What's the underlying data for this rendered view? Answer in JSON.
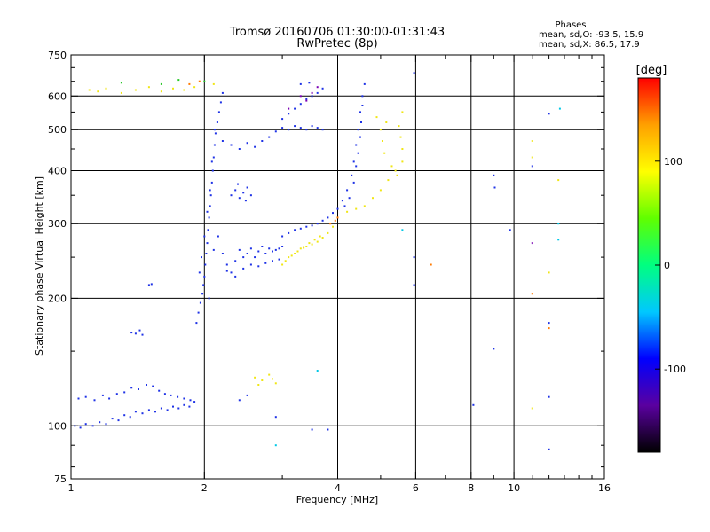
{
  "chart_data": {
    "type": "scatter",
    "title": "Tromsø 20160706 01:30:00-01:31:43",
    "subtitle": "RwPretec (8p)",
    "xlabel": "Frequency [MHz]",
    "ylabel": "Stationary phase Virtual Height [km]",
    "x_scale": "log",
    "y_scale": "log",
    "xlim": [
      1,
      16
    ],
    "ylim": [
      75,
      750
    ],
    "x_ticks": [
      1,
      2,
      4,
      6,
      8,
      10,
      16
    ],
    "x_tick_labels": [
      "1",
      "2",
      "4",
      "6",
      "8",
      "10",
      "16"
    ],
    "x_gridlines": [
      2,
      4,
      6,
      8,
      10
    ],
    "y_ticks": [
      75,
      100,
      200,
      300,
      400,
      500,
      600,
      750
    ],
    "y_tick_labels": [
      "75",
      "100",
      "200",
      "300",
      "400",
      "500",
      "600",
      "750"
    ],
    "y_gridlines": [
      100,
      200,
      300,
      400,
      500,
      600
    ],
    "grid": true,
    "stats": {
      "heading": "Phases",
      "line_o": "mean, sd,O: -93.5, 15.9",
      "line_x": "mean, sd,X:  86.5, 17.9"
    },
    "colorbar": {
      "label": "[deg]",
      "range": [
        -180,
        180
      ],
      "ticks": [
        100,
        0,
        -100
      ],
      "tick_labels": [
        "100",
        "0",
        "-100"
      ],
      "colors": [
        "#000000",
        "#5a00a0",
        "#0000ff",
        "#00c8ff",
        "#00ff80",
        "#60ff00",
        "#ffff00",
        "#ffa000",
        "#ff0000"
      ]
    },
    "series": [
      {
        "color": "#1e32e6",
        "points": [
          [
            1.02,
            100
          ],
          [
            1.05,
            99
          ],
          [
            1.08,
            101
          ],
          [
            1.12,
            100
          ],
          [
            1.16,
            102
          ],
          [
            1.2,
            101
          ],
          [
            1.24,
            104
          ],
          [
            1.28,
            103
          ],
          [
            1.32,
            106
          ],
          [
            1.36,
            105
          ],
          [
            1.4,
            108
          ],
          [
            1.45,
            107
          ],
          [
            1.5,
            109
          ],
          [
            1.55,
            108
          ],
          [
            1.6,
            110
          ],
          [
            1.65,
            109
          ],
          [
            1.7,
            111
          ],
          [
            1.75,
            110
          ],
          [
            1.8,
            112
          ],
          [
            1.85,
            111
          ],
          [
            1.04,
            116
          ],
          [
            1.08,
            117
          ],
          [
            1.13,
            115
          ],
          [
            1.18,
            118
          ],
          [
            1.22,
            116
          ],
          [
            1.27,
            119
          ],
          [
            1.32,
            120
          ],
          [
            1.37,
            123
          ],
          [
            1.42,
            122
          ],
          [
            1.48,
            125
          ],
          [
            1.53,
            124
          ],
          [
            1.58,
            121
          ],
          [
            1.63,
            119
          ],
          [
            1.68,
            118
          ],
          [
            1.74,
            117
          ],
          [
            1.8,
            116
          ],
          [
            1.86,
            115
          ],
          [
            1.9,
            114
          ],
          [
            1.4,
            165
          ],
          [
            1.43,
            168
          ],
          [
            1.37,
            166
          ],
          [
            1.45,
            164
          ],
          [
            1.5,
            215
          ],
          [
            1.52,
            216
          ],
          [
            1.92,
            175
          ],
          [
            1.94,
            185
          ],
          [
            1.96,
            195
          ],
          [
            1.98,
            205
          ],
          [
            1.99,
            215
          ],
          [
            2.0,
            225
          ],
          [
            2.01,
            240
          ],
          [
            2.02,
            255
          ],
          [
            2.03,
            270
          ],
          [
            2.04,
            290
          ],
          [
            2.05,
            310
          ],
          [
            2.06,
            330
          ],
          [
            2.07,
            350
          ],
          [
            2.08,
            375
          ],
          [
            2.09,
            400
          ],
          [
            2.1,
            430
          ],
          [
            2.11,
            460
          ],
          [
            2.12,
            490
          ],
          [
            2.14,
            520
          ],
          [
            2.16,
            550
          ],
          [
            2.18,
            580
          ],
          [
            2.2,
            610
          ],
          [
            1.95,
            230
          ],
          [
            1.97,
            250
          ],
          [
            2.0,
            280
          ],
          [
            2.03,
            320
          ],
          [
            2.06,
            360
          ],
          [
            2.08,
            420
          ],
          [
            2.11,
            500
          ],
          [
            2.05,
            200
          ],
          [
            2.1,
            260
          ],
          [
            2.15,
            280
          ],
          [
            2.2,
            255
          ],
          [
            2.25,
            240
          ],
          [
            2.3,
            230
          ],
          [
            2.35,
            245
          ],
          [
            2.4,
            260
          ],
          [
            2.45,
            250
          ],
          [
            2.5,
            255
          ],
          [
            2.55,
            262
          ],
          [
            2.6,
            250
          ],
          [
            2.65,
            258
          ],
          [
            2.7,
            265
          ],
          [
            2.75,
            255
          ],
          [
            2.8,
            262
          ],
          [
            2.85,
            258
          ],
          [
            2.9,
            260
          ],
          [
            2.95,
            262
          ],
          [
            3.0,
            265
          ],
          [
            2.25,
            232
          ],
          [
            2.35,
            225
          ],
          [
            2.45,
            235
          ],
          [
            2.55,
            240
          ],
          [
            2.65,
            238
          ],
          [
            2.75,
            242
          ],
          [
            2.85,
            245
          ],
          [
            2.95,
            247
          ],
          [
            2.3,
            350
          ],
          [
            2.35,
            360
          ],
          [
            2.4,
            345
          ],
          [
            2.45,
            355
          ],
          [
            2.5,
            365
          ],
          [
            2.55,
            350
          ],
          [
            2.38,
            372
          ],
          [
            2.48,
            340
          ],
          [
            2.2,
            470
          ],
          [
            2.3,
            460
          ],
          [
            2.4,
            450
          ],
          [
            2.5,
            465
          ],
          [
            2.6,
            455
          ],
          [
            2.7,
            470
          ],
          [
            2.8,
            480
          ],
          [
            2.9,
            495
          ],
          [
            3.0,
            505
          ],
          [
            3.1,
            500
          ],
          [
            3.2,
            510
          ],
          [
            3.3,
            505
          ],
          [
            3.4,
            500
          ],
          [
            3.5,
            510
          ],
          [
            3.6,
            505
          ],
          [
            3.7,
            500
          ],
          [
            3.0,
            530
          ],
          [
            3.1,
            545
          ],
          [
            3.2,
            560
          ],
          [
            3.3,
            575
          ],
          [
            3.4,
            590
          ],
          [
            3.5,
            600
          ],
          [
            3.6,
            610
          ],
          [
            3.7,
            625
          ],
          [
            3.3,
            640
          ],
          [
            3.45,
            645
          ],
          [
            3.0,
            280
          ],
          [
            3.1,
            285
          ],
          [
            3.2,
            290
          ],
          [
            3.3,
            292
          ],
          [
            3.4,
            295
          ],
          [
            3.5,
            297
          ],
          [
            3.6,
            300
          ],
          [
            3.7,
            305
          ],
          [
            3.8,
            310
          ],
          [
            3.9,
            318
          ],
          [
            4.0,
            325
          ],
          [
            4.1,
            340
          ],
          [
            4.2,
            360
          ],
          [
            4.3,
            390
          ],
          [
            4.35,
            420
          ],
          [
            4.4,
            460
          ],
          [
            4.45,
            500
          ],
          [
            4.5,
            550
          ],
          [
            4.55,
            600
          ],
          [
            4.6,
            640
          ],
          [
            4.15,
            330
          ],
          [
            4.25,
            345
          ],
          [
            4.35,
            375
          ],
          [
            4.4,
            410
          ],
          [
            4.45,
            440
          ],
          [
            4.5,
            480
          ],
          [
            4.52,
            520
          ],
          [
            4.55,
            570
          ],
          [
            2.4,
            115
          ],
          [
            2.5,
            118
          ],
          [
            3.5,
            98
          ],
          [
            3.8,
            98
          ],
          [
            2.9,
            105
          ],
          [
            5.95,
            215
          ],
          [
            5.95,
            250
          ],
          [
            5.95,
            680
          ],
          [
            12.0,
            545
          ],
          [
            12.0,
            175
          ],
          [
            12.0,
            117
          ],
          [
            12.0,
            88
          ],
          [
            11.0,
            410
          ],
          [
            9.0,
            390
          ],
          [
            9.05,
            365
          ],
          [
            8.1,
            112
          ],
          [
            9.0,
            152
          ],
          [
            9.8,
            290
          ]
        ]
      },
      {
        "color": "#f0e614",
        "points": [
          [
            3.0,
            240
          ],
          [
            3.1,
            250
          ],
          [
            3.2,
            255
          ],
          [
            3.3,
            262
          ],
          [
            3.4,
            265
          ],
          [
            3.5,
            268
          ],
          [
            3.6,
            272
          ],
          [
            3.7,
            278
          ],
          [
            3.8,
            285
          ],
          [
            3.9,
            295
          ],
          [
            3.05,
            245
          ],
          [
            3.15,
            252
          ],
          [
            3.25,
            258
          ],
          [
            3.35,
            263
          ],
          [
            3.45,
            270
          ],
          [
            3.55,
            275
          ],
          [
            3.65,
            280
          ],
          [
            4.2,
            320
          ],
          [
            4.4,
            325
          ],
          [
            4.6,
            330
          ],
          [
            4.8,
            345
          ],
          [
            5.0,
            360
          ],
          [
            5.2,
            380
          ],
          [
            5.4,
            400
          ],
          [
            5.6,
            420
          ],
          [
            5.6,
            450
          ],
          [
            5.55,
            480
          ],
          [
            5.5,
            510
          ],
          [
            5.6,
            550
          ],
          [
            5.0,
            500
          ],
          [
            5.05,
            470
          ],
          [
            5.1,
            440
          ],
          [
            5.15,
            520
          ],
          [
            4.9,
            535
          ],
          [
            5.3,
            410
          ],
          [
            5.45,
            390
          ],
          [
            2.6,
            130
          ],
          [
            2.7,
            128
          ],
          [
            2.8,
            132
          ],
          [
            2.9,
            126
          ],
          [
            2.65,
            125
          ],
          [
            2.85,
            129
          ],
          [
            1.1,
            620
          ],
          [
            1.15,
            615
          ],
          [
            1.2,
            625
          ],
          [
            1.3,
            610
          ],
          [
            1.4,
            620
          ],
          [
            1.5,
            630
          ],
          [
            1.6,
            615
          ],
          [
            1.7,
            625
          ],
          [
            1.8,
            620
          ],
          [
            1.9,
            630
          ],
          [
            2.1,
            640
          ],
          [
            11.0,
            470
          ],
          [
            11.0,
            430
          ],
          [
            12.0,
            230
          ],
          [
            12.6,
            380
          ],
          [
            11.0,
            110
          ]
        ]
      },
      {
        "color": "#ff7a00",
        "points": [
          [
            3.95,
            305
          ],
          [
            4.0,
            310
          ],
          [
            3.85,
            300
          ],
          [
            1.85,
            640
          ],
          [
            1.95,
            650
          ],
          [
            6.5,
            240
          ],
          [
            12.0,
            170
          ],
          [
            11.0,
            205
          ]
        ]
      },
      {
        "color": "#00c8e6",
        "points": [
          [
            12.7,
            560
          ],
          [
            12.6,
            300
          ],
          [
            12.6,
            275
          ],
          [
            3.6,
            135
          ],
          [
            2.9,
            90
          ],
          [
            5.6,
            290
          ]
        ]
      },
      {
        "color": "#7a00b4",
        "points": [
          [
            3.1,
            560
          ],
          [
            3.3,
            600
          ],
          [
            3.5,
            610
          ],
          [
            3.6,
            630
          ],
          [
            3.4,
            585
          ],
          [
            11.0,
            270
          ]
        ]
      },
      {
        "color": "#28c828",
        "points": [
          [
            1.3,
            645
          ],
          [
            1.6,
            640
          ],
          [
            2.0,
            650
          ],
          [
            1.75,
            655
          ]
        ]
      }
    ]
  }
}
